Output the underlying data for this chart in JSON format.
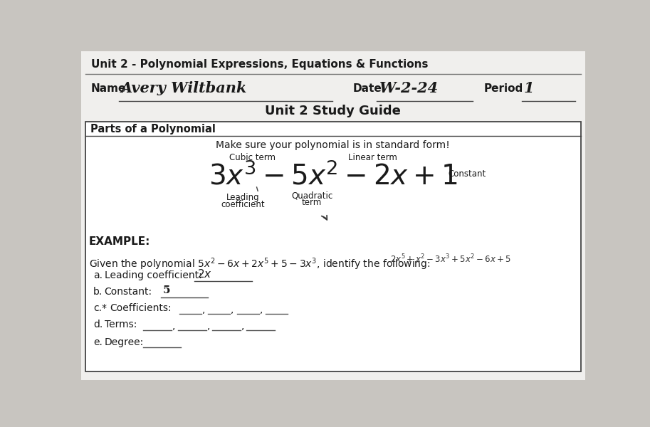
{
  "bg_color": "#c8c5c0",
  "paper_color": "#f0efed",
  "white_color": "#ffffff",
  "title_top": "Unit 2 - Polynomial Expressions, Equations & Functions",
  "name_label": "Name",
  "name_value": "Avery Wiltbank",
  "date_label": "Date",
  "date_value": "W-2-24",
  "period_label": "Period",
  "period_value": "1",
  "subtitle": "Unit 2 Study Guide",
  "section_title": "Parts of a Polynomial",
  "standard_form_note": "Make sure your polynomial is in standard form!",
  "cubic_term_label": "Cubic term",
  "linear_term_label": "Linear term",
  "quadratic_label": "Quadratic\nterm",
  "leading_coeff_label": "Leading\ncoefficient",
  "constant_label": "Constant",
  "example_header": "EXAMPLE:",
  "text_color": "#1a1a1a",
  "line_color": "#555555"
}
